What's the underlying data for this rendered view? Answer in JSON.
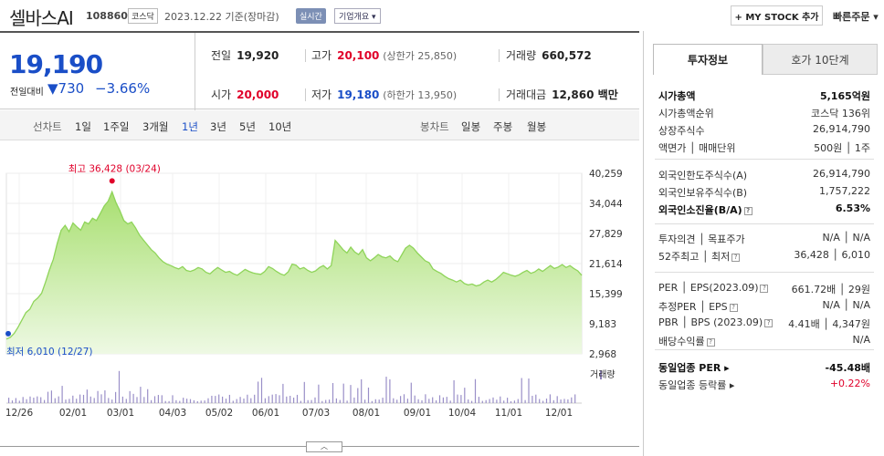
{
  "header": {
    "name": "셀바스AI",
    "code": "108860",
    "market": "코스닥",
    "basis": "2023.12.22  기준(장마감)",
    "realtime": "실시간",
    "overview": "기업개요 ▾",
    "mystock": "+ MY STOCK 추가",
    "quick_order": "빠른주문 ▾"
  },
  "quote": {
    "price": "19,190",
    "change_label": "전일대비",
    "change": "▼730",
    "change_pct": "−3.66%",
    "prev_label": "전일",
    "prev": "19,920",
    "high_label": "고가",
    "high": "20,100",
    "upper_limit": "(상한가 25,850)",
    "volume_label": "거래량",
    "volume": "660,572",
    "open_label": "시가",
    "open": "20,000",
    "low_label": "저가",
    "low": "19,180",
    "lower_limit": "(하한가 13,950)",
    "amount_label": "거래대금",
    "amount": "12,860 백만"
  },
  "periods": {
    "line_label": "선차트",
    "items": [
      "1일",
      "1주일",
      "3개월",
      "1년",
      "3년",
      "5년",
      "10년"
    ],
    "active": "1년",
    "candle_label": "봉차트",
    "candle_items": [
      "일봉",
      "주봉",
      "월봉"
    ]
  },
  "chart_data": {
    "type": "area",
    "y_ticks": [
      2968,
      9183,
      15399,
      21614,
      27829,
      34044,
      40259
    ],
    "ylim": [
      2968,
      40259
    ],
    "x_ticks": [
      "12/26",
      "02/01",
      "03/01",
      "04/03",
      "05/02",
      "06/01",
      "07/03",
      "08/01",
      "09/01",
      "10/04",
      "11/01",
      "12/01"
    ],
    "max_label": "최고 36,428 (03/24)",
    "min_label": "최저 6,010 (12/27)",
    "max_value": 36428,
    "min_value": 6010,
    "volume_label": "거래량",
    "series": [
      {
        "values": [
          6010,
          6400,
          7200,
          8500,
          10000,
          11500,
          12200,
          13800,
          14500,
          15500,
          17800,
          20300,
          22500,
          25800,
          28500,
          29500,
          28200,
          30000,
          29200,
          28500,
          30200,
          29800,
          31000,
          30500,
          32000,
          33500,
          34500,
          36428,
          34200,
          32500,
          30500,
          29800,
          30200,
          29000,
          27500,
          26500,
          25500,
          24500,
          23800,
          22800,
          22000,
          21500,
          21200,
          20800,
          20500,
          21000,
          20200,
          20000,
          20300,
          20800,
          20500,
          19800,
          19500,
          20200,
          20800,
          20300,
          19800,
          20000,
          19500,
          19200,
          19800,
          20400,
          20000,
          19700,
          19500,
          19400,
          20000,
          21000,
          20600,
          20000,
          19500,
          19200,
          19900,
          21500,
          21300,
          20500,
          20800,
          20200,
          19800,
          20100,
          20800,
          21200,
          20500,
          21200,
          26400,
          25500,
          24500,
          23800,
          25000,
          24000,
          23500,
          24500,
          22800,
          22200,
          22800,
          23500,
          23000,
          22800,
          23200,
          22400,
          22000,
          23400,
          24800,
          25400,
          24800,
          23800,
          23000,
          22200,
          21800,
          20500,
          20000,
          19600,
          19000,
          18500,
          18200,
          17800,
          18200,
          17500,
          17200,
          17400,
          17000,
          17200,
          17800,
          18200,
          17800,
          18300,
          19000,
          19800,
          19500,
          19200,
          19000,
          19300,
          19800,
          20200,
          19600,
          19900,
          20500,
          20000,
          20600,
          21200,
          20600,
          20900,
          21400,
          20800,
          21200,
          20600,
          20100,
          19190
        ]
      }
    ]
  },
  "side": {
    "tab_active": "투자정보",
    "tab_other": "호가 10단계",
    "rows1": [
      {
        "k": "시가총액",
        "v": "5,165억원",
        "bold": true
      },
      {
        "k": "시가총액순위",
        "v": "코스닥 136위"
      },
      {
        "k": "상장주식수",
        "v": "26,914,790"
      },
      {
        "k": "액면가 │ 매매단위",
        "v": "500원 │ 1주"
      }
    ],
    "rows2": [
      {
        "k": "외국인한도주식수(A)",
        "v": "26,914,790"
      },
      {
        "k": "외국인보유주식수(B)",
        "v": "1,757,222"
      },
      {
        "k": "외국인소진율(B/A)",
        "v": "6.53%",
        "bold": true,
        "help": true
      }
    ],
    "rows3": [
      {
        "k": "투자의견 │ 목표주가",
        "v": "N/A │ N/A"
      },
      {
        "k": "52주최고 │ 최저",
        "v": "36,428 │ 6,010",
        "help": true
      }
    ],
    "rows4": [
      {
        "k": "PER │ EPS(2023.09)",
        "v": "661.72배 │ 29원",
        "help": true
      },
      {
        "k": "추정PER │ EPS",
        "v": "N/A │ N/A",
        "help": true
      },
      {
        "k": "PBR │ BPS (2023.09)",
        "v": "4.41배 │ 4,347원",
        "help": true
      },
      {
        "k": "배당수익률",
        "v": "N/A",
        "help": true
      }
    ],
    "rows5": [
      {
        "k": "동일업종 PER ▸",
        "v": "-45.48배",
        "bold": true
      },
      {
        "k": "동일업종 등락률 ▸",
        "v": "+0.22%",
        "red": true
      }
    ]
  },
  "collapse": "︿",
  "colors": {
    "up": "#e0002a",
    "down": "#1a4ec7",
    "area": "#b6e58a"
  }
}
